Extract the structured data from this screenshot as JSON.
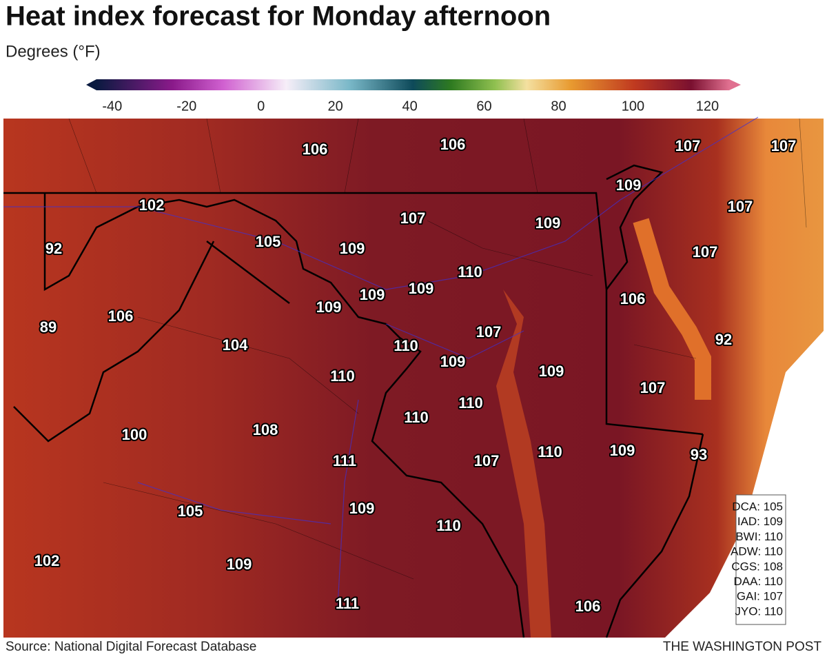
{
  "header": {
    "title": "Heat index forecast for Monday afternoon",
    "subtitle": "Degrees (°F)"
  },
  "colorbar": {
    "lim": [
      -47,
      129
    ],
    "ticks": [
      -40,
      -20,
      0,
      20,
      40,
      60,
      80,
      100,
      120
    ]
  },
  "map": {
    "labels": [
      106,
      106,
      107,
      107,
      109,
      102,
      107,
      107,
      109,
      92,
      105,
      109,
      107,
      110,
      109,
      109,
      109,
      106,
      89,
      106,
      107,
      92,
      104,
      110,
      109,
      110,
      109,
      107,
      110,
      110,
      108,
      100,
      109,
      110,
      93,
      111,
      107,
      109,
      105,
      110,
      102,
      109,
      111,
      106
    ]
  },
  "stations": [
    "DCA: 105",
    "IAD: 109",
    "BWI: 110",
    "ADW: 110",
    "CGS: 108",
    "DAA: 110",
    "GAI: 107",
    "JYO: 110"
  ],
  "footer": {
    "source": "Source: National Digital Forecast Database",
    "credit": "THE WASHINGTON POST"
  }
}
